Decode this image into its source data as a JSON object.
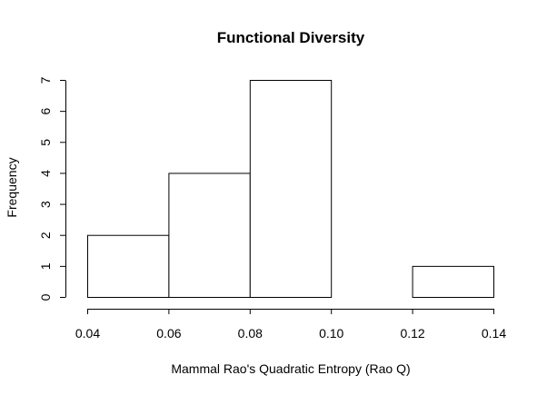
{
  "chart_data": {
    "type": "bar",
    "title": "Functional Diversity",
    "xlabel": "Mammal Rao's Quadratic Entropy (Rao Q)",
    "ylabel": "Frequency",
    "bins": [
      {
        "start": 0.04,
        "end": 0.06,
        "count": 2
      },
      {
        "start": 0.06,
        "end": 0.08,
        "count": 4
      },
      {
        "start": 0.08,
        "end": 0.1,
        "count": 7
      },
      {
        "start": 0.1,
        "end": 0.12,
        "count": 0
      },
      {
        "start": 0.12,
        "end": 0.14,
        "count": 1
      }
    ],
    "xlim": [
      0.04,
      0.14
    ],
    "ylim": [
      0,
      7
    ],
    "x_ticks": [
      "0.04",
      "0.06",
      "0.08",
      "0.10",
      "0.12",
      "0.14"
    ],
    "y_ticks": [
      "0",
      "1",
      "2",
      "3",
      "4",
      "5",
      "6",
      "7"
    ],
    "grid": false,
    "bar_fill": "#ffffff",
    "bar_stroke": "#000000"
  }
}
